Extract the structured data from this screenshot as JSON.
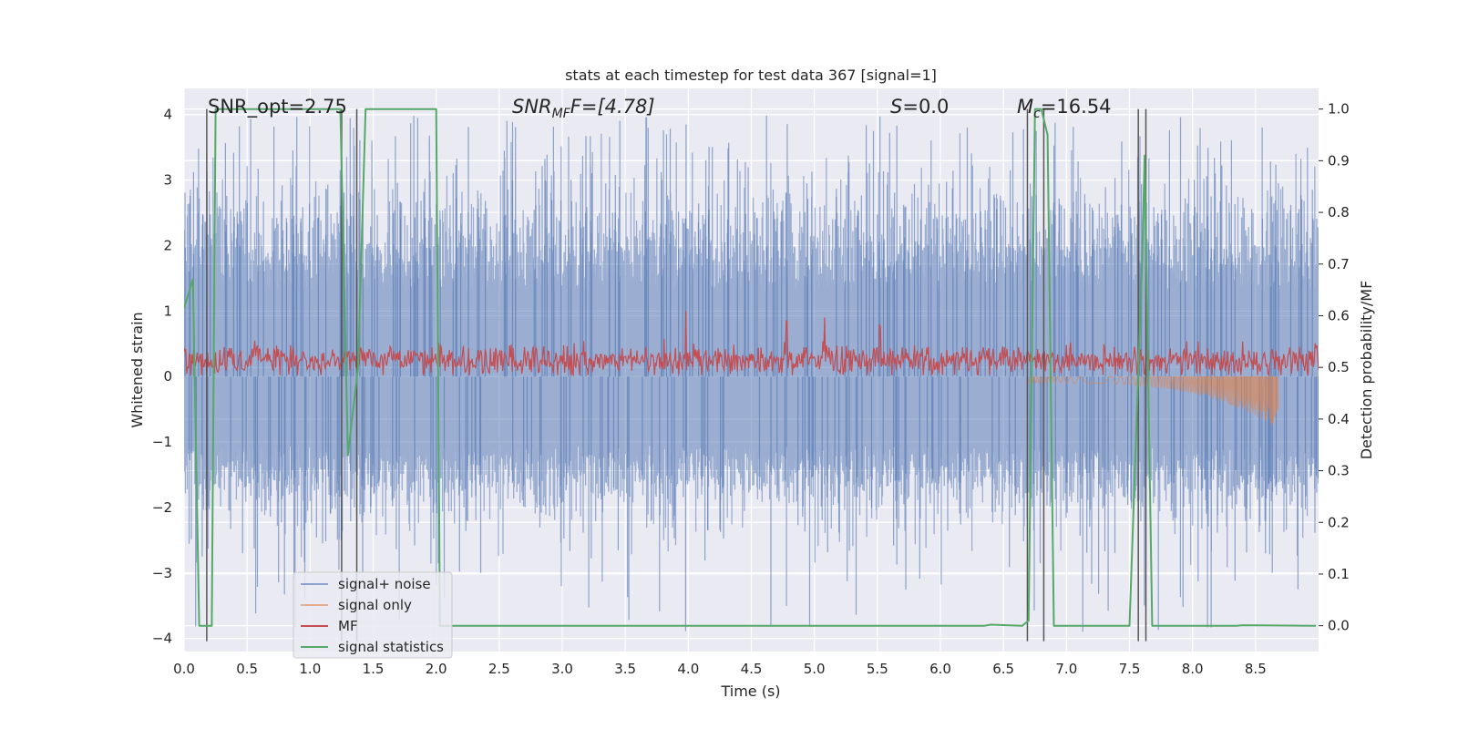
{
  "chart_data": {
    "type": "line",
    "title": "stats at each timestep for test data 367 [signal=1]",
    "xlabel": "Time (s)",
    "ylabel": "Whitened strain",
    "ylabel_right": "Detection probability/MF",
    "xlim": [
      0.0,
      9.0
    ],
    "ylim": [
      -4.2,
      4.4
    ],
    "ylim_right": [
      -0.05,
      1.04
    ],
    "x_ticks": [
      0.0,
      0.5,
      1.0,
      1.5,
      2.0,
      2.5,
      3.0,
      3.5,
      4.0,
      4.5,
      5.0,
      5.5,
      6.0,
      6.5,
      7.0,
      7.5,
      8.0,
      8.5
    ],
    "x_tick_labels": [
      "0.0",
      "0.5",
      "1.0",
      "1.5",
      "2.0",
      "2.5",
      "3.0",
      "3.5",
      "4.0",
      "4.5",
      "5.0",
      "5.5",
      "6.0",
      "6.5",
      "7.0",
      "7.5",
      "8.0",
      "8.5"
    ],
    "y_ticks": [
      4,
      3,
      2,
      1,
      0,
      -1,
      -2,
      -3,
      -4
    ],
    "y_tick_labels": [
      "4",
      "3",
      "2",
      "1",
      "0",
      "−1",
      "−2",
      "−3",
      "−4"
    ],
    "y_right_ticks": [
      1.0,
      0.9,
      0.8,
      0.7,
      0.6,
      0.5,
      0.4,
      0.3,
      0.2,
      0.1,
      0.0
    ],
    "y_right_tick_labels": [
      "1.0",
      "0.9",
      "0.8",
      "0.7",
      "0.6",
      "0.5",
      "0.4",
      "0.3",
      "0.2",
      "0.1",
      "0.0"
    ],
    "grid": true,
    "legend_position": "lower-left",
    "annotations": {
      "snr_opt": "SNR_opt=2.75",
      "snr_mf_main": "SNR",
      "snr_mf_sub": "MF",
      "snr_mf_rest": "F=[4.78]",
      "s_main": "S",
      "s_rest": "=0.0",
      "mc_main": "M",
      "mc_sub": "c",
      "mc_rest": "=16.54"
    },
    "series": [
      {
        "name": "signal+ noise",
        "color": "#4c72b0",
        "kind": "noise band",
        "envelope_typical": [
          -1.5,
          2.4
        ],
        "envelope_extreme": [
          -3.9,
          4.0
        ]
      },
      {
        "name": "signal only",
        "color": "#dd8452",
        "kind": "chirp",
        "x_range": [
          6.7,
          8.68
        ],
        "amplitude_end": 0.7
      },
      {
        "name": "MF",
        "color": "#c44e52",
        "kind": "matched filter",
        "baseline": 0.25,
        "peaks": [
          {
            "x": 3.98,
            "y": 1.0
          },
          {
            "x": 4.78,
            "y": 0.85
          },
          {
            "x": 5.08,
            "y": 0.9
          },
          {
            "x": 5.52,
            "y": 0.8
          }
        ]
      },
      {
        "name": "signal statistics",
        "color": "#55a868",
        "axis": "right",
        "x": [
          0.0,
          0.07,
          0.12,
          0.17,
          0.22,
          0.25,
          1.24,
          1.3,
          1.38,
          1.44,
          2.0,
          2.03,
          2.1,
          6.35,
          6.4,
          6.65,
          6.7,
          6.75,
          6.8,
          6.85,
          6.9,
          7.5,
          7.6,
          7.62,
          7.68,
          8.35,
          8.4,
          8.98
        ],
        "y": [
          0.615,
          0.67,
          0.0,
          0.0,
          0.0,
          1.0,
          1.0,
          0.33,
          0.5,
          1.0,
          1.0,
          0.0,
          0.0,
          0.0,
          0.002,
          0.0,
          0.01,
          1.0,
          1.0,
          0.95,
          0.0,
          0.0,
          0.7,
          0.91,
          0.0,
          0.0,
          0.001,
          0.0
        ]
      }
    ],
    "vertical_lines_x": [
      0.18,
      1.25,
      1.37,
      6.69,
      6.82,
      7.57,
      7.63
    ]
  }
}
